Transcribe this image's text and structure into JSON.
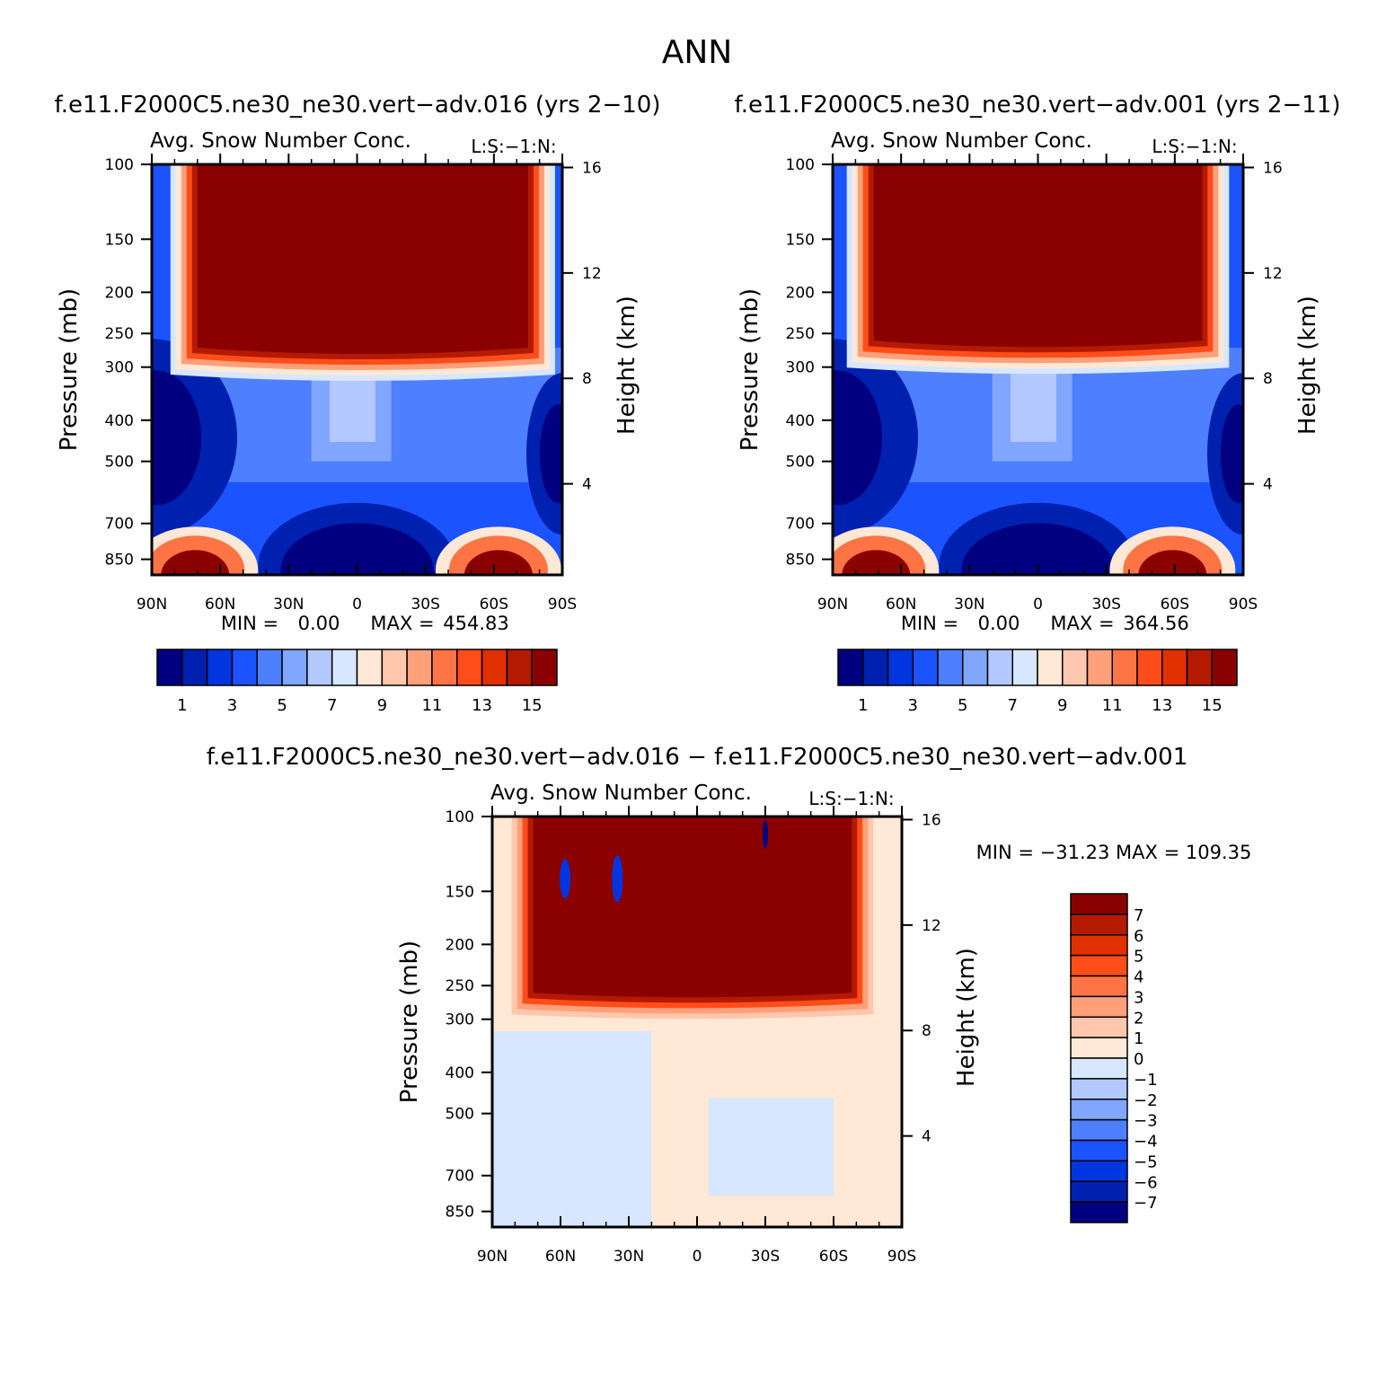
{
  "title": "ANN",
  "chart_data": [
    {
      "type": "heatmap",
      "case_title": "f.e11.F2000C5.ne30_ne30.vert−adv.016 (yrs 2−10)",
      "variable": "Avg. Snow Number Conc.",
      "units": "L:S:−1:N:",
      "xlabel": "",
      "ylabel": "Pressure (mb)",
      "ylabel_right": "Height (km)",
      "x_ticks": [
        "90N",
        "60N",
        "30N",
        "0",
        "30S",
        "60S",
        "90S"
      ],
      "x_tick_values": [
        90,
        60,
        30,
        0,
        -30,
        -60,
        -90
      ],
      "y_ticks": [
        "100",
        "150",
        "200",
        "250",
        "300",
        "400",
        "500",
        "700",
        "850"
      ],
      "y_tick_values": [
        100,
        150,
        200,
        250,
        300,
        400,
        500,
        700,
        850
      ],
      "height_ticks": [
        "16",
        "12",
        "8",
        "4"
      ],
      "height_tick_values": [
        16,
        12,
        8,
        4
      ],
      "ylim": [
        100,
        925
      ],
      "stats_min_label": "MIN =",
      "stats_min": "0.00",
      "stats_max_label": "MAX =",
      "stats_max": "454.83",
      "colorbar": {
        "orientation": "horizontal",
        "levels": [
          1,
          2,
          3,
          4,
          5,
          6,
          7,
          8,
          9,
          10,
          11,
          12,
          13,
          14,
          15
        ],
        "labels": [
          "1",
          "3",
          "5",
          "7",
          "9",
          "11",
          "13",
          "15"
        ],
        "colors": [
          "#000080",
          "#0020b0",
          "#0035e0",
          "#1a53ff",
          "#4d7fff",
          "#80a6ff",
          "#b3c8ff",
          "#d6e7ff",
          "#ffe8d6",
          "#ffc7ad",
          "#ffa07a",
          "#ff7445",
          "#ff4d1a",
          "#e03000",
          "#b31a00",
          "#8b0000"
        ]
      },
      "features": [
        {
          "name": "upper-tropospheric max",
          "value": "> 15",
          "lat_range": [
            70,
            -75
          ],
          "p_range": [
            100,
            270
          ]
        },
        {
          "name": "low-level polar max NH",
          "value": "> 15",
          "lat_range": [
            82,
            60
          ],
          "p_range": [
            850,
            925
          ]
        },
        {
          "name": "low-level polar max SH",
          "value": "> 15",
          "lat_range": [
            -52,
            -72
          ],
          "p_range": [
            850,
            925
          ]
        },
        {
          "name": "mid-level minimum",
          "value": "< 1",
          "lat_range": [
            90,
            68
          ],
          "p_range": [
            350,
            550
          ]
        }
      ]
    },
    {
      "type": "heatmap",
      "case_title": "f.e11.F2000C5.ne30_ne30.vert−adv.001 (yrs 2−11)",
      "variable": "Avg. Snow Number Conc.",
      "units": "L:S:−1:N:",
      "xlabel": "",
      "ylabel": "Pressure (mb)",
      "ylabel_right": "Height (km)",
      "x_ticks": [
        "90N",
        "60N",
        "30N",
        "0",
        "30S",
        "60S",
        "90S"
      ],
      "x_tick_values": [
        90,
        60,
        30,
        0,
        -30,
        -60,
        -90
      ],
      "y_ticks": [
        "100",
        "150",
        "200",
        "250",
        "300",
        "400",
        "500",
        "700",
        "850"
      ],
      "y_tick_values": [
        100,
        150,
        200,
        250,
        300,
        400,
        500,
        700,
        850
      ],
      "height_ticks": [
        "16",
        "12",
        "8",
        "4"
      ],
      "height_tick_values": [
        16,
        12,
        8,
        4
      ],
      "ylim": [
        100,
        925
      ],
      "stats_min_label": "MIN =",
      "stats_min": "0.00",
      "stats_max_label": "MAX =",
      "stats_max": "364.56",
      "colorbar": {
        "orientation": "horizontal",
        "levels": [
          1,
          2,
          3,
          4,
          5,
          6,
          7,
          8,
          9,
          10,
          11,
          12,
          13,
          14,
          15
        ],
        "labels": [
          "1",
          "3",
          "5",
          "7",
          "9",
          "11",
          "13",
          "15"
        ],
        "colors": [
          "#000080",
          "#0020b0",
          "#0035e0",
          "#1a53ff",
          "#4d7fff",
          "#80a6ff",
          "#b3c8ff",
          "#d6e7ff",
          "#ffe8d6",
          "#ffc7ad",
          "#ffa07a",
          "#ff7445",
          "#ff4d1a",
          "#e03000",
          "#b31a00",
          "#8b0000"
        ]
      },
      "features": [
        {
          "name": "upper-tropospheric max",
          "value": "> 15",
          "lat_range": [
            72,
            -72
          ],
          "p_range": [
            100,
            260
          ]
        },
        {
          "name": "low-level polar max NH",
          "value": "> 15",
          "lat_range": [
            82,
            60
          ],
          "p_range": [
            850,
            925
          ]
        },
        {
          "name": "low-level polar max SH",
          "value": "> 15",
          "lat_range": [
            -48,
            -70
          ],
          "p_range": [
            850,
            925
          ]
        },
        {
          "name": "mid-level minimum",
          "value": "< 1",
          "lat_range": [
            90,
            68
          ],
          "p_range": [
            350,
            550
          ]
        }
      ]
    },
    {
      "type": "heatmap",
      "case_title": "f.e11.F2000C5.ne30_ne30.vert−adv.016 − f.e11.F2000C5.ne30_ne30.vert−adv.001",
      "variable": "Avg. Snow Number Conc.",
      "units": "L:S:−1:N:",
      "xlabel": "",
      "ylabel": "Pressure (mb)",
      "ylabel_right": "Height (km)",
      "x_ticks": [
        "90N",
        "60N",
        "30N",
        "0",
        "30S",
        "60S",
        "90S"
      ],
      "x_tick_values": [
        90,
        60,
        30,
        0,
        -30,
        -60,
        -90
      ],
      "y_ticks": [
        "100",
        "150",
        "200",
        "250",
        "300",
        "400",
        "500",
        "700",
        "850"
      ],
      "y_tick_values": [
        100,
        150,
        200,
        250,
        300,
        400,
        500,
        700,
        850
      ],
      "height_ticks": [
        "16",
        "12",
        "8",
        "4"
      ],
      "height_tick_values": [
        16,
        12,
        8,
        4
      ],
      "ylim": [
        100,
        925
      ],
      "stats": "MIN = −31.23   MAX = 109.35",
      "colorbar": {
        "orientation": "vertical",
        "levels": [
          -7,
          -6,
          -5,
          -4,
          -3,
          -2,
          -1,
          0,
          1,
          2,
          3,
          4,
          5,
          6,
          7
        ],
        "labels": [
          "7",
          "6",
          "5",
          "4",
          "3",
          "2",
          "1",
          "0",
          "−1",
          "−2",
          "−3",
          "−4",
          "−5",
          "−6",
          "−7"
        ],
        "colors": [
          "#8b0000",
          "#b31a00",
          "#e03000",
          "#ff4d1a",
          "#ff7445",
          "#ffa07a",
          "#ffc7ad",
          "#ffe8d6",
          "#d6e7ff",
          "#b3c8ff",
          "#80a6ff",
          "#4d7fff",
          "#1a53ff",
          "#0035e0",
          "#0020b0",
          "#000080"
        ]
      },
      "features": [
        {
          "name": "upper-level positive difference",
          "value": "> 7",
          "lat_range": [
            72,
            -68
          ],
          "p_range": [
            100,
            260
          ]
        },
        {
          "name": "mid/low-level small differences",
          "value": "-1 to 1",
          "lat_range": [
            90,
            -90
          ],
          "p_range": [
            300,
            925
          ]
        }
      ]
    }
  ]
}
